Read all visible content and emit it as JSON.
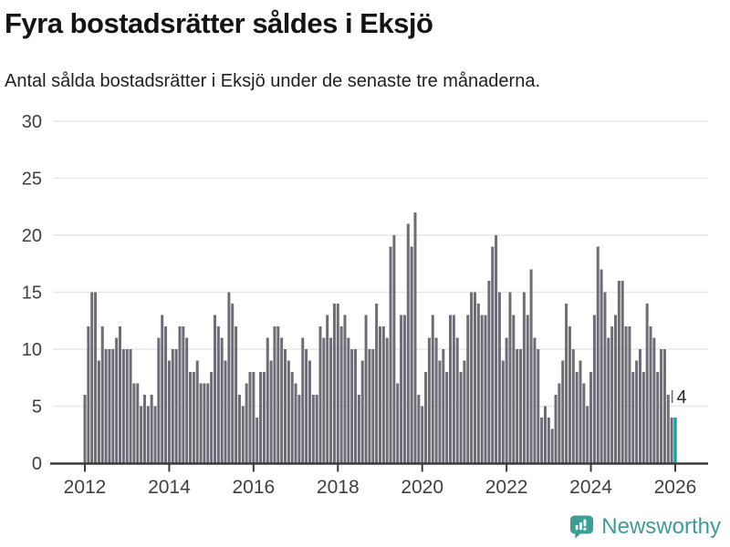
{
  "header": {
    "title": "Fyra bostadsrätter såldes i Eksjö",
    "subtitle": "Antal sålda bostadsrätter i Eksjö under de senaste tre månaderna."
  },
  "chart_data": {
    "type": "bar",
    "title": "Fyra bostadsrätter såldes i Eksjö",
    "subtitle": "Antal sålda bostadsrätter i Eksjö under de senaste tre månaderna.",
    "x_unit": "month",
    "x_start": "2012-01",
    "x_end": "2026-01",
    "values": [
      6,
      12,
      15,
      15,
      9,
      12,
      10,
      10,
      10,
      11,
      12,
      10,
      10,
      10,
      7,
      7,
      5,
      6,
      5,
      6,
      5,
      11,
      13,
      12,
      9,
      10,
      10,
      12,
      12,
      11,
      8,
      8,
      9,
      7,
      7,
      7,
      8,
      13,
      12,
      11,
      9,
      15,
      14,
      12,
      6,
      5,
      7,
      8,
      8,
      4,
      8,
      8,
      11,
      9,
      12,
      12,
      11,
      10,
      9,
      8,
      7,
      6,
      11,
      10,
      9,
      6,
      6,
      12,
      11,
      13,
      11,
      14,
      14,
      12,
      13,
      11,
      10,
      10,
      6,
      9,
      13,
      10,
      10,
      14,
      12,
      12,
      11,
      19,
      20,
      7,
      13,
      13,
      21,
      19,
      22,
      6,
      5,
      8,
      11,
      13,
      11,
      9,
      10,
      8,
      13,
      13,
      11,
      8,
      9,
      13,
      15,
      15,
      14,
      13,
      13,
      16,
      19,
      20,
      15,
      9,
      11,
      15,
      13,
      10,
      10,
      15,
      13,
      17,
      11,
      10,
      4,
      5,
      4,
      3,
      6,
      7,
      9,
      14,
      12,
      10,
      8,
      9,
      7,
      5,
      8,
      13,
      19,
      17,
      15,
      11,
      12,
      13,
      16,
      16,
      12,
      12,
      8,
      9,
      10,
      8,
      14,
      12,
      11,
      8,
      10,
      10,
      6,
      4,
      4
    ],
    "year_ticks": [
      "2012",
      "2014",
      "2016",
      "2018",
      "2020",
      "2022",
      "2024",
      "2026"
    ],
    "yticks": [
      0,
      5,
      10,
      15,
      20,
      25,
      30
    ],
    "ylim": [
      0,
      30
    ],
    "grid": "horizontal",
    "legend": "none",
    "bar_color": "#6d6d77",
    "highlight_color": "#12a39e",
    "highlight_last": true,
    "last_value_label": "4"
  },
  "footer": {
    "brand": "Newsworthy",
    "brand_color": "#3e9c94",
    "icon": "bar-chart-speech-bubble-icon"
  }
}
